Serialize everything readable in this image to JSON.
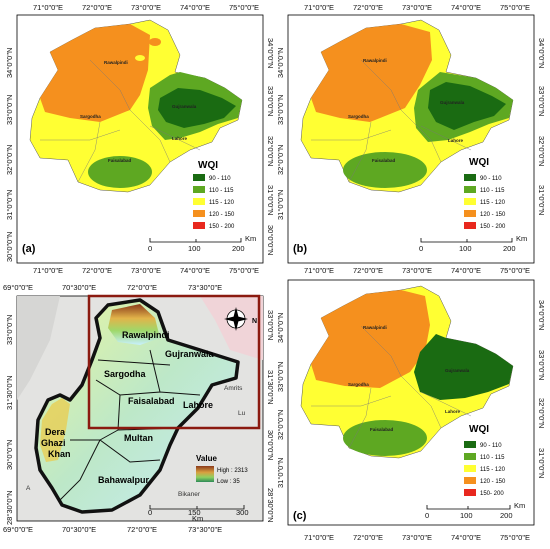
{
  "axes": {
    "top_ticks": [
      "71°0\"0\"E",
      "72°0\"0\"E",
      "73°0\"0\"E",
      "74°0\"0\"E",
      "75°0\"0\"E"
    ],
    "left_ticks_a": [
      "34°0\"0\"N",
      "33°0\"0\"N",
      "32°0\"0\"N",
      "31°0\"0\"N",
      "30°0\"0\"N"
    ],
    "mid_ticks": [
      "71°0\"0\"E",
      "72°0\"0\"E",
      "73°0\"0\"E",
      "74°0\"0\"E",
      "75°0\"0\"E"
    ],
    "bottom_ticks_c": [
      "71°0\"0\"E",
      "72°0\"0\"E",
      "73°0\"0\"E",
      "74°0\"0\"E",
      "75°0\"0\"E"
    ],
    "top_ticks_inset": [
      "69°0\"0\"E",
      "70°30\"0\"E",
      "72°0\"0\"E",
      "73°30\"0\"E"
    ],
    "bottom_ticks_inset": [
      "69°0\"0\"E",
      "70°30\"0\"E",
      "72°0\"0\"E",
      "73°30\"0\"E"
    ],
    "left_ticks_inset": [
      "33°0\"0\"N",
      "31°30\"0\"N",
      "30°0\"0\"N",
      "28°30\"0\"N"
    ],
    "right_ticks_inset": [
      "33°0\"0\"N",
      "31°30\"0\"N",
      "30°0\"0\"N",
      "28°30\"0\"N"
    ]
  },
  "cities": {
    "rawalpindi": "Rawalpindi",
    "sargodha": "Sargodha",
    "gujranwala": "Gujranwala",
    "lahore": "Lahore",
    "faisalabad": "Faisalabad"
  },
  "legend": {
    "title": "WQI",
    "classes": [
      {
        "label": "90 - 110",
        "color": "#1a6b12"
      },
      {
        "label": "110 - 115",
        "color": "#5ea822"
      },
      {
        "label": "115 - 120",
        "color": "#ffff33"
      },
      {
        "label": "120 - 150",
        "color": "#f5901e"
      },
      {
        "label": "150 - 200",
        "color": "#e8281e"
      }
    ],
    "classes_c": [
      "90 - 110",
      "110 - 115",
      "115 - 120",
      "120 - 150",
      "150- 200"
    ]
  },
  "scalebar": {
    "labels": [
      "0",
      "100",
      "200"
    ],
    "unit": "Km"
  },
  "panels": {
    "a": "(a)",
    "b": "(b)",
    "c": "(c)"
  },
  "inset": {
    "districts": [
      "Rawalpindi",
      "Gujranwala",
      "Sargodha",
      "Faisalabad",
      "Lahore",
      "Dera Ghazi Khan",
      "Multan",
      "Bahawalpur"
    ],
    "dera": [
      "Dera",
      "Ghazi",
      "Khan"
    ],
    "legend_title": "Value",
    "high": "High : 2313",
    "low": "Low : 35",
    "scale_labels": [
      "0",
      "150",
      "300"
    ],
    "scale_unit": "Km",
    "basemap_labels": [
      "Bikaner",
      "Amrits",
      "Lu"
    ],
    "compass_letter": "N",
    "corner_letter": "A"
  }
}
